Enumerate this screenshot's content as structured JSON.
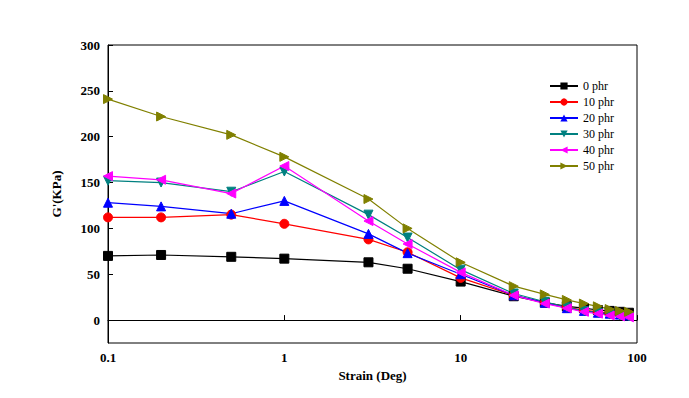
{
  "chart_data": {
    "type": "line",
    "x_label": "Strain (Deg)",
    "y_label": "G'(KPa)",
    "log": "x",
    "grid": false,
    "legend": "upper right",
    "xlim": [
      0.1,
      100
    ],
    "xticks": [
      0.1,
      1,
      10,
      100
    ],
    "ylim": [
      -25,
      300
    ],
    "yticks": [
      0,
      50,
      100,
      150,
      200,
      250,
      300
    ],
    "x": [
      0.1,
      0.2,
      0.5,
      1,
      3,
      5,
      10,
      20,
      30,
      40,
      50,
      60,
      70,
      80,
      90
    ],
    "series": [
      {
        "name": "0 phr",
        "color": "#000000",
        "marker": "square",
        "values": [
          70,
          71,
          69,
          67,
          63,
          56,
          42,
          26,
          19,
          15,
          13,
          11,
          10,
          9,
          8
        ]
      },
      {
        "name": "10 phr",
        "color": "#ff0000",
        "marker": "circle",
        "values": [
          112,
          112,
          115,
          105,
          88,
          74,
          46,
          27,
          19,
          14,
          11,
          9,
          8,
          7,
          6
        ]
      },
      {
        "name": "20 phr",
        "color": "#0000ff",
        "marker": "triangle-up",
        "values": [
          128,
          124,
          116,
          130,
          94,
          73,
          50,
          27,
          19,
          13,
          10,
          8,
          7,
          6,
          5
        ]
      },
      {
        "name": "30 phr",
        "color": "#008080",
        "marker": "triangle-down",
        "values": [
          152,
          150,
          140,
          162,
          115,
          90,
          55,
          29,
          20,
          14,
          10,
          8,
          6,
          5,
          4
        ]
      },
      {
        "name": "40 phr",
        "color": "#ff00ff",
        "marker": "triangle-left",
        "values": [
          157,
          153,
          138,
          168,
          108,
          83,
          52,
          27,
          18,
          13,
          9,
          7,
          5,
          4,
          3
        ]
      },
      {
        "name": "50 phr",
        "color": "#808000",
        "marker": "triangle-right",
        "values": [
          241,
          222,
          202,
          178,
          132,
          100,
          63,
          37,
          28,
          22,
          18,
          15,
          12,
          10,
          9
        ]
      }
    ]
  }
}
